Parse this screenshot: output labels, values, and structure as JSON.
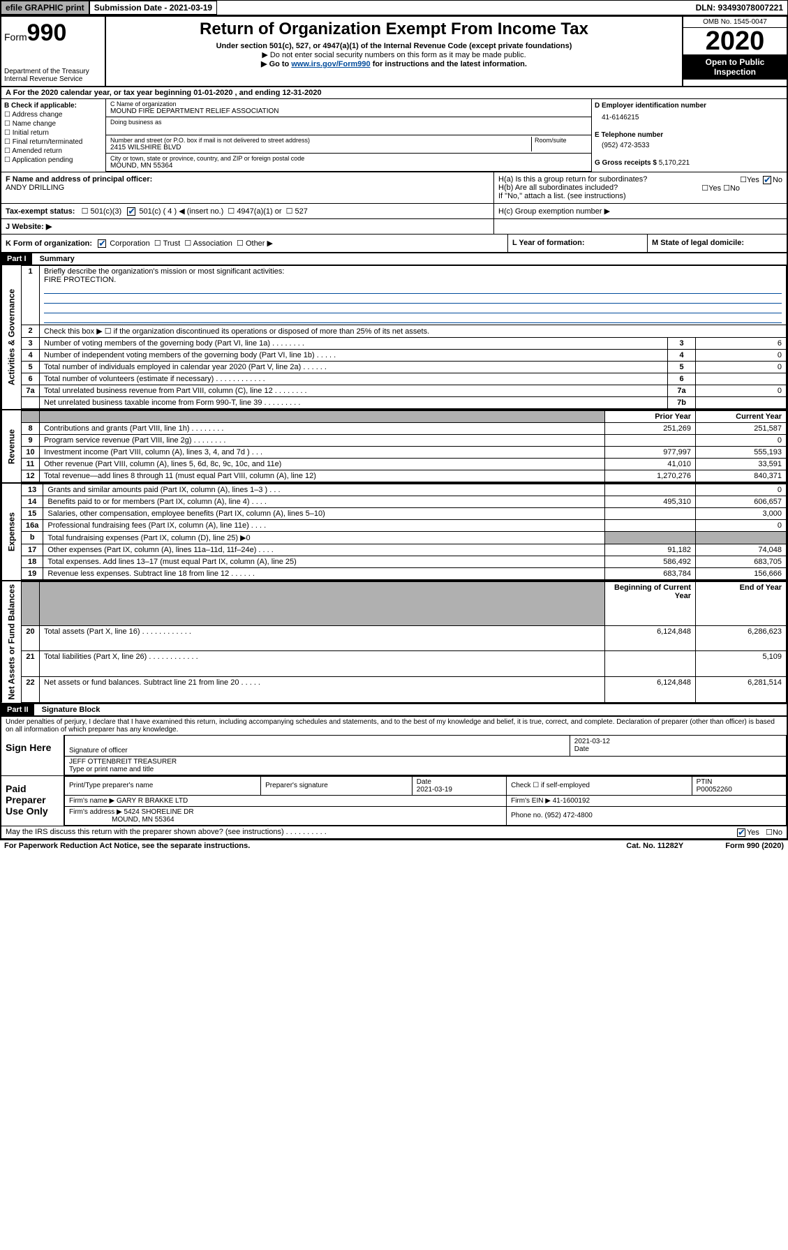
{
  "topbar": {
    "efile": "efile GRAPHIC print",
    "submission_label": "Submission Date - 2021-03-19",
    "dln": "DLN: 93493078007221"
  },
  "header": {
    "form_prefix": "Form",
    "form_num": "990",
    "dept": "Department of the Treasury",
    "irs": "Internal Revenue Service",
    "title": "Return of Organization Exempt From Income Tax",
    "subtitle": "Under section 501(c), 527, or 4947(a)(1) of the Internal Revenue Code (except private foundations)",
    "note1": "▶ Do not enter social security numbers on this form as it may be made public.",
    "note2_pre": "▶ Go to ",
    "note2_link": "www.irs.gov/Form990",
    "note2_post": " for instructions and the latest information.",
    "omb": "OMB No. 1545-0047",
    "year": "2020",
    "open": "Open to Public Inspection"
  },
  "period": "For the 2020 calendar year, or tax year beginning 01-01-2020   , and ending 12-31-2020",
  "boxB": {
    "label": "B Check if applicable:",
    "opts": [
      "Address change",
      "Name change",
      "Initial return",
      "Final return/terminated",
      "Amended return",
      "Application pending"
    ]
  },
  "boxC": {
    "name_label": "C Name of organization",
    "name": "MOUND FIRE DEPARTMENT RELIEF ASSOCIATION",
    "dba_label": "Doing business as",
    "addr_label": "Number and street (or P.O. box if mail is not delivered to street address)",
    "room_label": "Room/suite",
    "addr": "2415 WILSHIRE BLVD",
    "city_label": "City or town, state or province, country, and ZIP or foreign postal code",
    "city": "MOUND, MN  55364"
  },
  "boxD": {
    "label": "D Employer identification number",
    "ein": "41-6146215",
    "e_label": "E Telephone number",
    "phone": "(952) 472-3533",
    "g_label": "G Gross receipts $",
    "g_val": "5,170,221"
  },
  "boxF": {
    "label": "F Name and address of principal officer:",
    "name": "ANDY DRILLING"
  },
  "boxH": {
    "a": "H(a)  Is this a group return for subordinates?",
    "b": "H(b)  Are all subordinates included?",
    "b_note": "If \"No,\" attach a list. (see instructions)",
    "c": "H(c)  Group exemption number ▶"
  },
  "boxI": {
    "label": "Tax-exempt status:",
    "opts": [
      "501(c)(3)",
      "501(c) ( 4 ) ◀ (insert no.)",
      "4947(a)(1) or",
      "527"
    ]
  },
  "boxJ": "J    Website: ▶",
  "boxK": "K Form of organization:",
  "k_opts": [
    "Corporation",
    "Trust",
    "Association",
    "Other ▶"
  ],
  "boxL": "L Year of formation:",
  "boxM": "M State of legal domicile:",
  "part1": {
    "hdr": "Part I",
    "title": "Summary",
    "q1": "Briefly describe the organization's mission or most significant activities:",
    "mission": "FIRE PROTECTION.",
    "q2": "Check this box ▶ ☐  if the organization discontinued its operations or disposed of more than 25% of its net assets.",
    "rows_gov": [
      {
        "n": "3",
        "d": "Number of voting members of the governing body (Part VI, line 1a)   .    .    .    .    .    .    .    .",
        "k": "3",
        "v": "6"
      },
      {
        "n": "4",
        "d": "Number of independent voting members of the governing body (Part VI, line 1b)   .    .    .    .    .",
        "k": "4",
        "v": "0"
      },
      {
        "n": "5",
        "d": "Total number of individuals employed in calendar year 2020 (Part V, line 2a)   .    .    .    .    .    .",
        "k": "5",
        "v": "0"
      },
      {
        "n": "6",
        "d": "Total number of volunteers (estimate if necessary)   .    .    .    .    .    .    .    .    .    .    .    .",
        "k": "6",
        "v": ""
      },
      {
        "n": "7a",
        "d": "Total unrelated business revenue from Part VIII, column (C), line 12   .    .    .    .    .    .    .    .",
        "k": "7a",
        "v": "0"
      },
      {
        "n": "",
        "d": "Net unrelated business taxable income from Form 990-T, line 39   .    .    .    .    .    .    .    .    .",
        "k": "7b",
        "v": ""
      }
    ],
    "hdr_prior": "Prior Year",
    "hdr_curr": "Current Year",
    "rows_rev": [
      {
        "n": "8",
        "d": "Contributions and grants (Part VIII, line 1h)   .    .    .    .    .    .    .    .",
        "p": "251,269",
        "c": "251,587"
      },
      {
        "n": "9",
        "d": "Program service revenue (Part VIII, line 2g)   .    .    .    .    .    .    .    .",
        "p": "",
        "c": "0"
      },
      {
        "n": "10",
        "d": "Investment income (Part VIII, column (A), lines 3, 4, and 7d )   .    .    .",
        "p": "977,997",
        "c": "555,193"
      },
      {
        "n": "11",
        "d": "Other revenue (Part VIII, column (A), lines 5, 6d, 8c, 9c, 10c, and 11e)",
        "p": "41,010",
        "c": "33,591"
      },
      {
        "n": "12",
        "d": "Total revenue—add lines 8 through 11 (must equal Part VIII, column (A), line 12)",
        "p": "1,270,276",
        "c": "840,371"
      }
    ],
    "rows_exp": [
      {
        "n": "13",
        "d": "Grants and similar amounts paid (Part IX, column (A), lines 1–3 )   .    .    .",
        "p": "",
        "c": "0"
      },
      {
        "n": "14",
        "d": "Benefits paid to or for members (Part IX, column (A), line 4)   .    .    .    .",
        "p": "495,310",
        "c": "606,657"
      },
      {
        "n": "15",
        "d": "Salaries, other compensation, employee benefits (Part IX, column (A), lines 5–10)",
        "p": "",
        "c": "3,000"
      },
      {
        "n": "16a",
        "d": "Professional fundraising fees (Part IX, column (A), line 11e)   .    .    .    .",
        "p": "",
        "c": "0"
      },
      {
        "n": "b",
        "d": "Total fundraising expenses (Part IX, column (D), line 25) ▶0",
        "p": "__shade__",
        "c": "__shade__"
      },
      {
        "n": "17",
        "d": "Other expenses (Part IX, column (A), lines 11a–11d, 11f–24e)   .    .    .    .",
        "p": "91,182",
        "c": "74,048"
      },
      {
        "n": "18",
        "d": "Total expenses. Add lines 13–17 (must equal Part IX, column (A), line 25)",
        "p": "586,492",
        "c": "683,705"
      },
      {
        "n": "19",
        "d": "Revenue less expenses. Subtract line 18 from line 12   .    .    .    .    .    .",
        "p": "683,784",
        "c": "156,666"
      }
    ],
    "hdr_beg": "Beginning of Current Year",
    "hdr_end": "End of Year",
    "rows_net": [
      {
        "n": "20",
        "d": "Total assets (Part X, line 16)   .    .    .    .    .    .    .    .    .    .    .    .",
        "p": "6,124,848",
        "c": "6,286,623"
      },
      {
        "n": "21",
        "d": "Total liabilities (Part X, line 26)   .    .    .    .    .    .    .    .    .    .    .    .",
        "p": "",
        "c": "5,109"
      },
      {
        "n": "22",
        "d": "Net assets or fund balances. Subtract line 21 from line 20   .    .    .    .    .",
        "p": "6,124,848",
        "c": "6,281,514"
      }
    ]
  },
  "side_labels": {
    "gov": "Activities & Governance",
    "rev": "Revenue",
    "exp": "Expenses",
    "net": "Net Assets or Fund Balances"
  },
  "part2": {
    "hdr": "Part II",
    "title": "Signature Block",
    "perjury": "Under penalties of perjury, I declare that I have examined this return, including accompanying schedules and statements, and to the best of my knowledge and belief, it is true, correct, and complete. Declaration of preparer (other than officer) is based on all information of which preparer has any knowledge."
  },
  "sign": {
    "here": "Sign Here",
    "sig_officer": "Signature of officer",
    "date": "2021-03-12",
    "date_label": "Date",
    "name": "JEFF OTTENBREIT  TREASURER",
    "name_label": "Type or print name and title"
  },
  "paid": {
    "label": "Paid Preparer Use Only",
    "h1": "Print/Type preparer's name",
    "h2": "Preparer's signature",
    "h3": "Date",
    "h3v": "2021-03-19",
    "h4": "Check ☐ if self-employed",
    "h5": "PTIN",
    "h5v": "P00052260",
    "firm_name_l": "Firm's name    ▶",
    "firm_name": "GARY R BRAKKE LTD",
    "firm_ein_l": "Firm's EIN ▶",
    "firm_ein": "41-1600192",
    "firm_addr_l": "Firm's address ▶",
    "firm_addr": "5424 SHORELINE DR",
    "firm_city": "MOUND, MN  55364",
    "phone_l": "Phone no.",
    "phone": "(952) 472-4800"
  },
  "footer": {
    "discuss": "May the IRS discuss this return with the preparer shown above? (see instructions)   .    .    .    .    .    .    .    .    .    .",
    "yes": "Yes",
    "no": "No",
    "paperwork": "For Paperwork Reduction Act Notice, see the separate instructions.",
    "cat": "Cat. No. 11282Y",
    "form": "Form 990 (2020)"
  }
}
